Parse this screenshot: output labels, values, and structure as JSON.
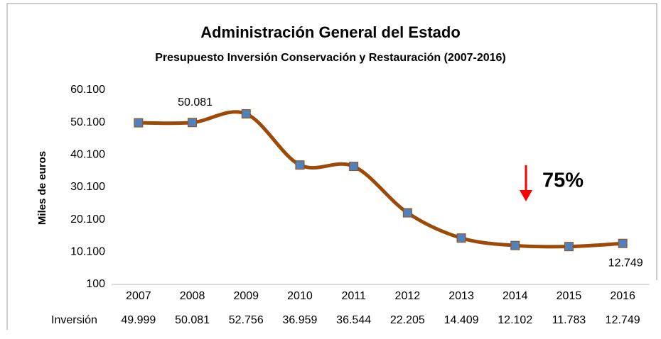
{
  "chart_data": {
    "type": "line",
    "title": "Administración General del Estado",
    "subtitle": "Presupuesto Inversión Conservación y Restauración (2007-2016)",
    "y_label": "Miles de euros",
    "categories": [
      "2007",
      "2008",
      "2009",
      "2010",
      "2011",
      "2012",
      "2013",
      "2014",
      "2015",
      "2016"
    ],
    "series": [
      {
        "name": "Inversión",
        "color": "#9c4a08",
        "marker_color": "#4f81bd",
        "values": [
          49999,
          50081,
          52756,
          36959,
          36544,
          22205,
          14409,
          12102,
          11783,
          12749
        ],
        "value_labels": [
          "49.999",
          "50.081",
          "52.756",
          "36.959",
          "36.544",
          "22.205",
          "14.409",
          "12.102",
          "11.783",
          "12.749"
        ],
        "point_labels": [
          null,
          "50.081",
          null,
          null,
          null,
          null,
          null,
          null,
          null,
          "12.749"
        ]
      }
    ],
    "ylim": [
      100,
      60100
    ],
    "yticks": [
      {
        "value": 100,
        "label": "100"
      },
      {
        "value": 10100,
        "label": "10.100"
      },
      {
        "value": 20100,
        "label": "20.100"
      },
      {
        "value": 30100,
        "label": "30.100"
      },
      {
        "value": 40100,
        "label": "40.100"
      },
      {
        "value": 50100,
        "label": "50.100"
      },
      {
        "value": 60100,
        "label": "60.100"
      }
    ],
    "annotation": {
      "text": "75%",
      "color": "#ff0000"
    },
    "grid": false
  }
}
